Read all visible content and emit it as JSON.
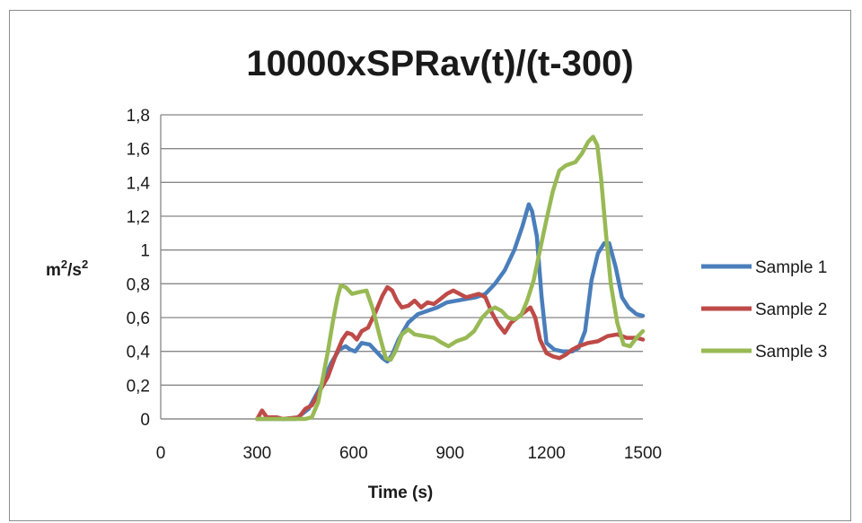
{
  "chart_data": {
    "type": "line",
    "title": "10000xSPRav(t)/(t-300)",
    "xlabel": "Time (s)",
    "ylabel_base": "m",
    "ylabel_sup1": "2",
    "ylabel_mid": "/s",
    "ylabel_sup2": "2",
    "xlim": [
      0,
      1500
    ],
    "ylim": [
      0,
      1.8
    ],
    "xticks": [
      0,
      300,
      600,
      900,
      1200,
      1500
    ],
    "xtick_labels": [
      "0",
      "300",
      "600",
      "900",
      "1200",
      "1500"
    ],
    "yticks": [
      0,
      0.2,
      0.4,
      0.6,
      0.8,
      1,
      1.2,
      1.4,
      1.6,
      1.8
    ],
    "ytick_labels": [
      "0",
      "0,2",
      "0,4",
      "0,6",
      "0,8",
      "1",
      "1,2",
      "1,4",
      "1,6",
      "1,8"
    ],
    "grid": "horizontal",
    "legend": "right",
    "series": [
      {
        "name": "Sample 1",
        "color": "#4a7ebb",
        "points": [
          [
            300,
            0
          ],
          [
            420,
            0
          ],
          [
            460,
            0.06
          ],
          [
            500,
            0.2
          ],
          [
            530,
            0.33
          ],
          [
            555,
            0.41
          ],
          [
            575,
            0.43
          ],
          [
            590,
            0.41
          ],
          [
            605,
            0.4
          ],
          [
            625,
            0.45
          ],
          [
            650,
            0.44
          ],
          [
            670,
            0.4
          ],
          [
            690,
            0.36
          ],
          [
            705,
            0.34
          ],
          [
            720,
            0.38
          ],
          [
            740,
            0.47
          ],
          [
            770,
            0.57
          ],
          [
            800,
            0.62
          ],
          [
            830,
            0.64
          ],
          [
            860,
            0.66
          ],
          [
            890,
            0.69
          ],
          [
            920,
            0.7
          ],
          [
            950,
            0.71
          ],
          [
            980,
            0.72
          ],
          [
            1010,
            0.74
          ],
          [
            1040,
            0.8
          ],
          [
            1070,
            0.88
          ],
          [
            1100,
            1.0
          ],
          [
            1125,
            1.14
          ],
          [
            1145,
            1.27
          ],
          [
            1155,
            1.23
          ],
          [
            1170,
            1.08
          ],
          [
            1185,
            0.72
          ],
          [
            1200,
            0.45
          ],
          [
            1225,
            0.41
          ],
          [
            1250,
            0.4
          ],
          [
            1280,
            0.4
          ],
          [
            1300,
            0.42
          ],
          [
            1320,
            0.52
          ],
          [
            1340,
            0.82
          ],
          [
            1360,
            0.98
          ],
          [
            1380,
            1.04
          ],
          [
            1395,
            1.04
          ],
          [
            1415,
            0.9
          ],
          [
            1435,
            0.72
          ],
          [
            1455,
            0.66
          ],
          [
            1480,
            0.62
          ],
          [
            1500,
            0.61
          ]
        ]
      },
      {
        "name": "Sample 2",
        "color": "#be4b48",
        "points": [
          [
            300,
            0
          ],
          [
            315,
            0.05
          ],
          [
            330,
            0.01
          ],
          [
            360,
            0.01
          ],
          [
            380,
            0
          ],
          [
            430,
            0.01
          ],
          [
            450,
            0.06
          ],
          [
            470,
            0.08
          ],
          [
            490,
            0.15
          ],
          [
            520,
            0.25
          ],
          [
            545,
            0.38
          ],
          [
            565,
            0.47
          ],
          [
            580,
            0.51
          ],
          [
            595,
            0.5
          ],
          [
            610,
            0.47
          ],
          [
            625,
            0.52
          ],
          [
            645,
            0.54
          ],
          [
            670,
            0.64
          ],
          [
            690,
            0.73
          ],
          [
            705,
            0.78
          ],
          [
            720,
            0.76
          ],
          [
            735,
            0.7
          ],
          [
            750,
            0.66
          ],
          [
            770,
            0.67
          ],
          [
            790,
            0.7
          ],
          [
            810,
            0.66
          ],
          [
            830,
            0.69
          ],
          [
            850,
            0.68
          ],
          [
            870,
            0.71
          ],
          [
            890,
            0.74
          ],
          [
            910,
            0.76
          ],
          [
            930,
            0.74
          ],
          [
            950,
            0.72
          ],
          [
            970,
            0.73
          ],
          [
            990,
            0.74
          ],
          [
            1010,
            0.72
          ],
          [
            1030,
            0.63
          ],
          [
            1050,
            0.56
          ],
          [
            1070,
            0.51
          ],
          [
            1090,
            0.57
          ],
          [
            1110,
            0.6
          ],
          [
            1130,
            0.63
          ],
          [
            1150,
            0.66
          ],
          [
            1165,
            0.6
          ],
          [
            1180,
            0.47
          ],
          [
            1200,
            0.39
          ],
          [
            1220,
            0.37
          ],
          [
            1240,
            0.36
          ],
          [
            1260,
            0.38
          ],
          [
            1280,
            0.41
          ],
          [
            1300,
            0.43
          ],
          [
            1330,
            0.45
          ],
          [
            1360,
            0.46
          ],
          [
            1390,
            0.49
          ],
          [
            1420,
            0.5
          ],
          [
            1450,
            0.48
          ],
          [
            1480,
            0.48
          ],
          [
            1500,
            0.47
          ]
        ]
      },
      {
        "name": "Sample 3",
        "color": "#98b954",
        "points": [
          [
            300,
            0
          ],
          [
            450,
            0
          ],
          [
            470,
            0.01
          ],
          [
            490,
            0.1
          ],
          [
            505,
            0.25
          ],
          [
            520,
            0.4
          ],
          [
            535,
            0.57
          ],
          [
            550,
            0.72
          ],
          [
            560,
            0.79
          ],
          [
            575,
            0.78
          ],
          [
            595,
            0.74
          ],
          [
            615,
            0.75
          ],
          [
            640,
            0.76
          ],
          [
            660,
            0.65
          ],
          [
            680,
            0.5
          ],
          [
            700,
            0.36
          ],
          [
            715,
            0.35
          ],
          [
            730,
            0.4
          ],
          [
            750,
            0.5
          ],
          [
            770,
            0.53
          ],
          [
            790,
            0.5
          ],
          [
            820,
            0.49
          ],
          [
            850,
            0.48
          ],
          [
            875,
            0.45
          ],
          [
            895,
            0.43
          ],
          [
            920,
            0.46
          ],
          [
            950,
            0.48
          ],
          [
            975,
            0.52
          ],
          [
            1000,
            0.6
          ],
          [
            1020,
            0.64
          ],
          [
            1040,
            0.66
          ],
          [
            1060,
            0.64
          ],
          [
            1080,
            0.6
          ],
          [
            1100,
            0.59
          ],
          [
            1120,
            0.61
          ],
          [
            1140,
            0.7
          ],
          [
            1160,
            0.82
          ],
          [
            1180,
            1.0
          ],
          [
            1200,
            1.18
          ],
          [
            1220,
            1.35
          ],
          [
            1240,
            1.47
          ],
          [
            1260,
            1.5
          ],
          [
            1290,
            1.52
          ],
          [
            1310,
            1.57
          ],
          [
            1330,
            1.64
          ],
          [
            1345,
            1.67
          ],
          [
            1358,
            1.62
          ],
          [
            1370,
            1.42
          ],
          [
            1385,
            1.1
          ],
          [
            1400,
            0.8
          ],
          [
            1420,
            0.57
          ],
          [
            1440,
            0.44
          ],
          [
            1460,
            0.43
          ],
          [
            1480,
            0.48
          ],
          [
            1500,
            0.52
          ]
        ]
      }
    ]
  }
}
